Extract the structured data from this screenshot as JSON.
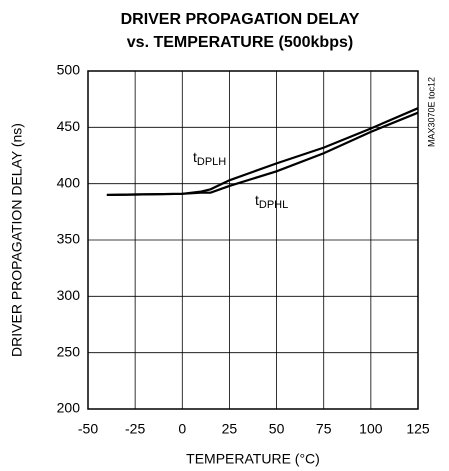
{
  "chart_data": {
    "type": "line",
    "title": "DRIVER PROPAGATION DELAY",
    "subtitle": "vs. TEMPERATURE (500kbps)",
    "x_label": "TEMPERATURE (°C)",
    "y_label": "DRIVER PROPAGATION DELAY (ns)",
    "annotation": "MAX3070E toc12",
    "x": [
      -40,
      0,
      10,
      15,
      25,
      50,
      75,
      100,
      125
    ],
    "series": [
      {
        "name": "tDPLH",
        "color": "#000000",
        "values": [
          390,
          391,
          393,
          395,
          403,
          418,
          432,
          449,
          467
        ]
      },
      {
        "name": "tDPHL",
        "color": "#000000",
        "values": [
          390,
          391,
          392,
          392,
          398,
          411,
          427,
          446,
          463
        ]
      }
    ],
    "xlim": [
      -50,
      125
    ],
    "xticks": [
      -50,
      -25,
      0,
      25,
      50,
      75,
      100,
      125
    ],
    "ylim": [
      200,
      500
    ],
    "yticks": [
      200,
      250,
      300,
      350,
      400,
      450,
      500
    ],
    "grid": true
  }
}
